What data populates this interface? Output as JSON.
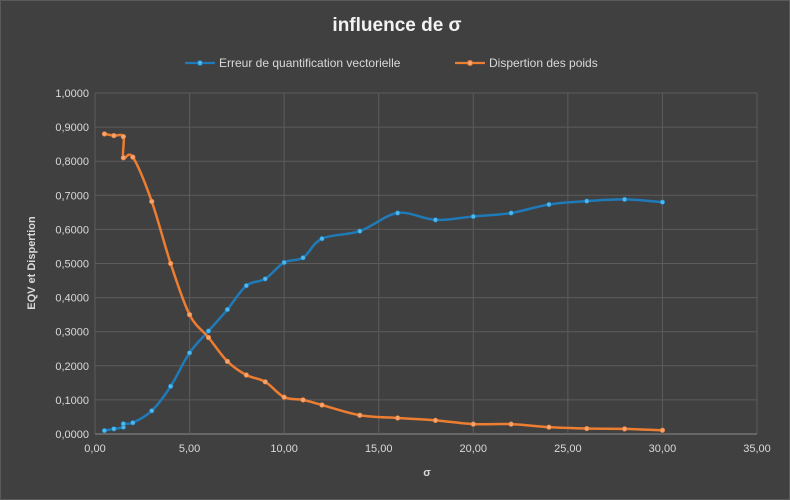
{
  "chart_data": {
    "type": "line",
    "title": "influence de σ",
    "xlabel": "σ",
    "ylabel": "EQV et Dispertion",
    "xlim": [
      0,
      35
    ],
    "ylim": [
      0,
      1
    ],
    "x_ticks": [
      "0,00",
      "5,00",
      "10,00",
      "15,00",
      "20,00",
      "25,00",
      "30,00",
      "35,00"
    ],
    "y_ticks": [
      "0,0000",
      "0,1000",
      "0,2000",
      "0,3000",
      "0,4000",
      "0,5000",
      "0,6000",
      "0,7000",
      "0,8000",
      "0,9000",
      "1,0000"
    ],
    "grid": true,
    "legend_position": "top",
    "series": [
      {
        "name": "Erreur de quantification vectorielle",
        "color": "#1f7ab8",
        "marker_color": "#4cb8ec",
        "points": [
          [
            0.5,
            0.01
          ],
          [
            1.0,
            0.015
          ],
          [
            1.5,
            0.02
          ],
          [
            1.5,
            0.03
          ],
          [
            2.0,
            0.033
          ],
          [
            3.0,
            0.068
          ],
          [
            4.0,
            0.14
          ],
          [
            5.0,
            0.238
          ],
          [
            6.0,
            0.302
          ],
          [
            7.0,
            0.365
          ],
          [
            8.0,
            0.435
          ],
          [
            9.0,
            0.455
          ],
          [
            10.0,
            0.503
          ],
          [
            11.0,
            0.517
          ],
          [
            12.0,
            0.573
          ],
          [
            14.0,
            0.595
          ],
          [
            16.0,
            0.648
          ],
          [
            18.0,
            0.628
          ],
          [
            20.0,
            0.638
          ],
          [
            22.0,
            0.648
          ],
          [
            24.0,
            0.673
          ],
          [
            26.0,
            0.683
          ],
          [
            28.0,
            0.688
          ],
          [
            30.0,
            0.68
          ]
        ]
      },
      {
        "name": "Dispertion des poids",
        "color": "#ed7d31",
        "marker_color": "#f4a471",
        "points": [
          [
            0.5,
            0.88
          ],
          [
            1.0,
            0.875
          ],
          [
            1.5,
            0.872
          ],
          [
            1.5,
            0.81
          ],
          [
            2.0,
            0.812
          ],
          [
            3.0,
            0.682
          ],
          [
            4.0,
            0.5
          ],
          [
            5.0,
            0.35
          ],
          [
            6.0,
            0.283
          ],
          [
            7.0,
            0.213
          ],
          [
            8.0,
            0.173
          ],
          [
            9.0,
            0.153
          ],
          [
            10.0,
            0.108
          ],
          [
            11.0,
            0.1
          ],
          [
            12.0,
            0.085
          ],
          [
            14.0,
            0.055
          ],
          [
            16.0,
            0.047
          ],
          [
            18.0,
            0.04
          ],
          [
            20.0,
            0.029
          ],
          [
            22.0,
            0.029
          ],
          [
            24.0,
            0.02
          ],
          [
            26.0,
            0.016
          ],
          [
            28.0,
            0.015
          ],
          [
            30.0,
            0.011
          ]
        ]
      }
    ]
  }
}
